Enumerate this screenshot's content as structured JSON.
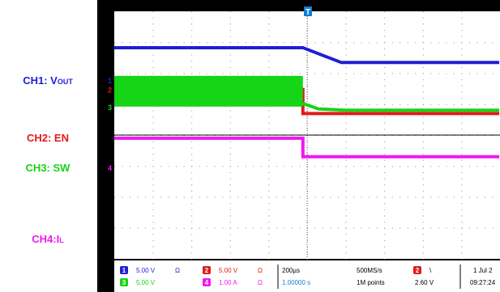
{
  "chart_data": {
    "type": "line",
    "channels": [
      {
        "id": "1",
        "label_main": "CH1: V",
        "label_sub": "OUT",
        "color": "#1f1fd6",
        "x": [
          0,
          4.9,
          5.9,
          10
        ],
        "y": [
          0,
          0,
          -0.48,
          -0.48
        ]
      },
      {
        "id": "2",
        "label_main": "CH2: EN",
        "label_sub": "",
        "color": "#e01a1a",
        "x": [
          0,
          4.9,
          4.9,
          10
        ],
        "y": [
          0,
          0,
          -0.78,
          -0.78
        ]
      },
      {
        "id": "3",
        "label_main": "CH3: SW",
        "label_sub": "",
        "color": "#16d416",
        "x": [
          0,
          4.9,
          5.3,
          6.0,
          10
        ],
        "y": [
          0,
          0,
          -0.18,
          -0.22,
          -0.22
        ]
      },
      {
        "id": "4",
        "label_main": "CH4:I",
        "label_sub": "L",
        "color": "#f018f0",
        "x": [
          0,
          4.9,
          4.9,
          10
        ],
        "y": [
          0,
          0,
          -0.6,
          -0.6
        ]
      }
    ],
    "trigger_marker": "T",
    "time_div": "200µs",
    "status": {
      "ch1": "5.00 V",
      "ch1_mark": "Ω",
      "ch2": "5.00 V",
      "ch2_mark": "Ω",
      "ch3": "5.00 V",
      "ch4": "1.00 A",
      "ch4_mark": "Ω",
      "timebase": "200µs",
      "sample_rate": "500MS/s",
      "record_length": "1M points",
      "trigger_channel": "2",
      "trigger_slope": "\\",
      "trigger_level": "2.60 V",
      "date": "1 Jul 2",
      "time": "09:27:24",
      "position": "1.00000 s"
    }
  }
}
